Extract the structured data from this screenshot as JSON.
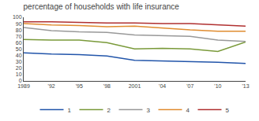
{
  "chart_data": {
    "type": "line",
    "title": "percentage of households with life insurance",
    "x": [
      1989,
      1992,
      1995,
      1998,
      2001,
      2004,
      2007,
      2010,
      2013
    ],
    "xlim": [
      1989,
      2013
    ],
    "xticks": [
      1989,
      {
        "value": 1992,
        "label": "'92"
      },
      {
        "value": 1995,
        "label": "'95"
      },
      {
        "value": 1998,
        "label": "'98"
      },
      2001,
      {
        "value": 2004,
        "label": "'04"
      },
      {
        "value": 2007,
        "label": "'07"
      },
      {
        "value": 2010,
        "label": "'10"
      },
      {
        "value": 2013,
        "label": "'13"
      }
    ],
    "series": [
      {
        "name": "1",
        "color": "#2255aa",
        "values": [
          44,
          42,
          41,
          39,
          32,
          31,
          30,
          29,
          27
        ]
      },
      {
        "name": "2",
        "color": "#7a9a3a",
        "values": [
          65,
          64,
          64,
          60,
          50,
          51,
          50,
          46,
          61
        ]
      },
      {
        "name": "3",
        "color": "#999999",
        "values": [
          84,
          79,
          77,
          76,
          72,
          71,
          70,
          64,
          62
        ]
      },
      {
        "name": "4",
        "color": "#e08c30",
        "values": [
          90,
          88,
          87,
          85,
          86,
          83,
          80,
          78,
          78
        ]
      },
      {
        "name": "5",
        "color": "#b03030",
        "values": [
          93,
          93,
          92,
          91,
          91,
          90,
          90,
          88,
          86
        ]
      }
    ],
    "ylim": [
      0,
      100
    ],
    "yticks": [
      0,
      10,
      20,
      30,
      40,
      50,
      60,
      70,
      80,
      90,
      100
    ],
    "grid": false,
    "legend": "bottom"
  }
}
